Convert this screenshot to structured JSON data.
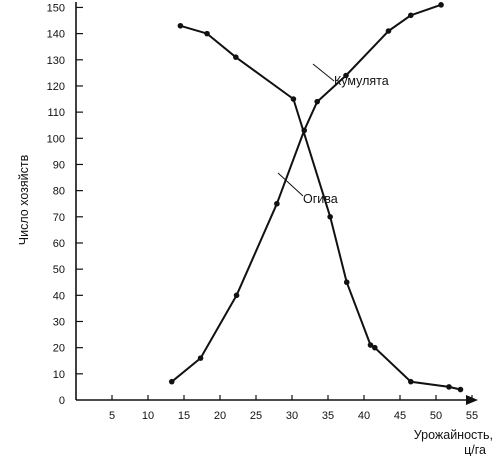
{
  "chart_data": {
    "type": "line",
    "title": "",
    "xlabel_line1": "Урожайность,",
    "xlabel_line2": "ц/га",
    "ylabel": "Число хозяйств",
    "xlim": [
      0,
      57
    ],
    "ylim": [
      0,
      150
    ],
    "x_ticks": [
      5,
      10,
      15,
      20,
      25,
      30,
      35,
      40,
      45,
      50,
      55
    ],
    "y_ticks": [
      0,
      10,
      20,
      30,
      40,
      50,
      60,
      70,
      80,
      90,
      100,
      110,
      120,
      130,
      140,
      150
    ],
    "grid": false,
    "legend": "none",
    "series": [
      {
        "name": "Кумулята",
        "points": [
          [
            13.3,
            7
          ],
          [
            17.3,
            16
          ],
          [
            22.3,
            40
          ],
          [
            27.9,
            75
          ],
          [
            31.7,
            103
          ],
          [
            33.5,
            114
          ],
          [
            37.5,
            124
          ],
          [
            43.4,
            141
          ],
          [
            46.5,
            147
          ],
          [
            50.7,
            151
          ]
        ]
      },
      {
        "name": "Огива",
        "points": [
          [
            14.5,
            143
          ],
          [
            18.2,
            140
          ],
          [
            22.2,
            131
          ],
          [
            30.2,
            115
          ],
          [
            35.3,
            70
          ],
          [
            37.6,
            45
          ],
          [
            40.9,
            21
          ],
          [
            41.5,
            20
          ],
          [
            46.5,
            7
          ],
          [
            51.8,
            5
          ],
          [
            53.4,
            4
          ]
        ]
      }
    ]
  }
}
